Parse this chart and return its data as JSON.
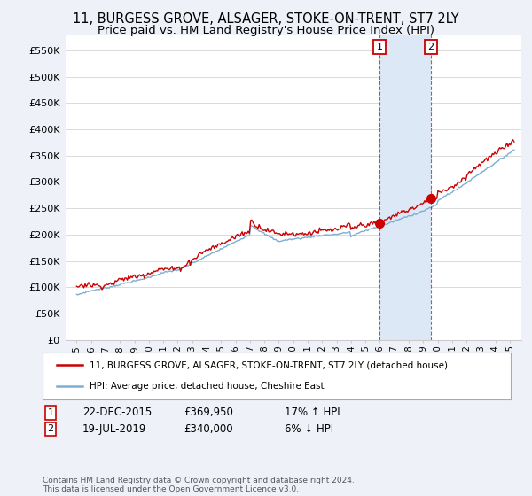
{
  "title": "11, BURGESS GROVE, ALSAGER, STOKE-ON-TRENT, ST7 2LY",
  "subtitle": "Price paid vs. HM Land Registry's House Price Index (HPI)",
  "title_fontsize": 10.5,
  "subtitle_fontsize": 9.5,
  "ylabel_ticks": [
    "£0",
    "£50K",
    "£100K",
    "£150K",
    "£200K",
    "£250K",
    "£300K",
    "£350K",
    "£400K",
    "£450K",
    "£500K",
    "£550K"
  ],
  "ytick_values": [
    0,
    50000,
    100000,
    150000,
    200000,
    250000,
    300000,
    350000,
    400000,
    450000,
    500000,
    550000
  ],
  "ylim": [
    0,
    580000
  ],
  "hpi_color": "#7bafd4",
  "price_color": "#cc0000",
  "shade_color": "#dce8f5",
  "marker1_date": 2015.97,
  "marker1_price": 369950,
  "marker1_label": "1",
  "marker2_date": 2019.54,
  "marker2_price": 340000,
  "marker2_label": "2",
  "legend_line1": "11, BURGESS GROVE, ALSAGER, STOKE-ON-TRENT, ST7 2LY (detached house)",
  "legend_line2": "HPI: Average price, detached house, Cheshire East",
  "annotation1_num": "1",
  "annotation1_date": "22-DEC-2015",
  "annotation1_price": "£369,950",
  "annotation1_hpi": "17% ↑ HPI",
  "annotation2_num": "2",
  "annotation2_date": "19-JUL-2019",
  "annotation2_price": "£340,000",
  "annotation2_hpi": "6% ↓ HPI",
  "footer": "Contains HM Land Registry data © Crown copyright and database right 2024.\nThis data is licensed under the Open Government Licence v3.0.",
  "background_color": "#eef2f8",
  "plot_bg_color": "#ffffff"
}
